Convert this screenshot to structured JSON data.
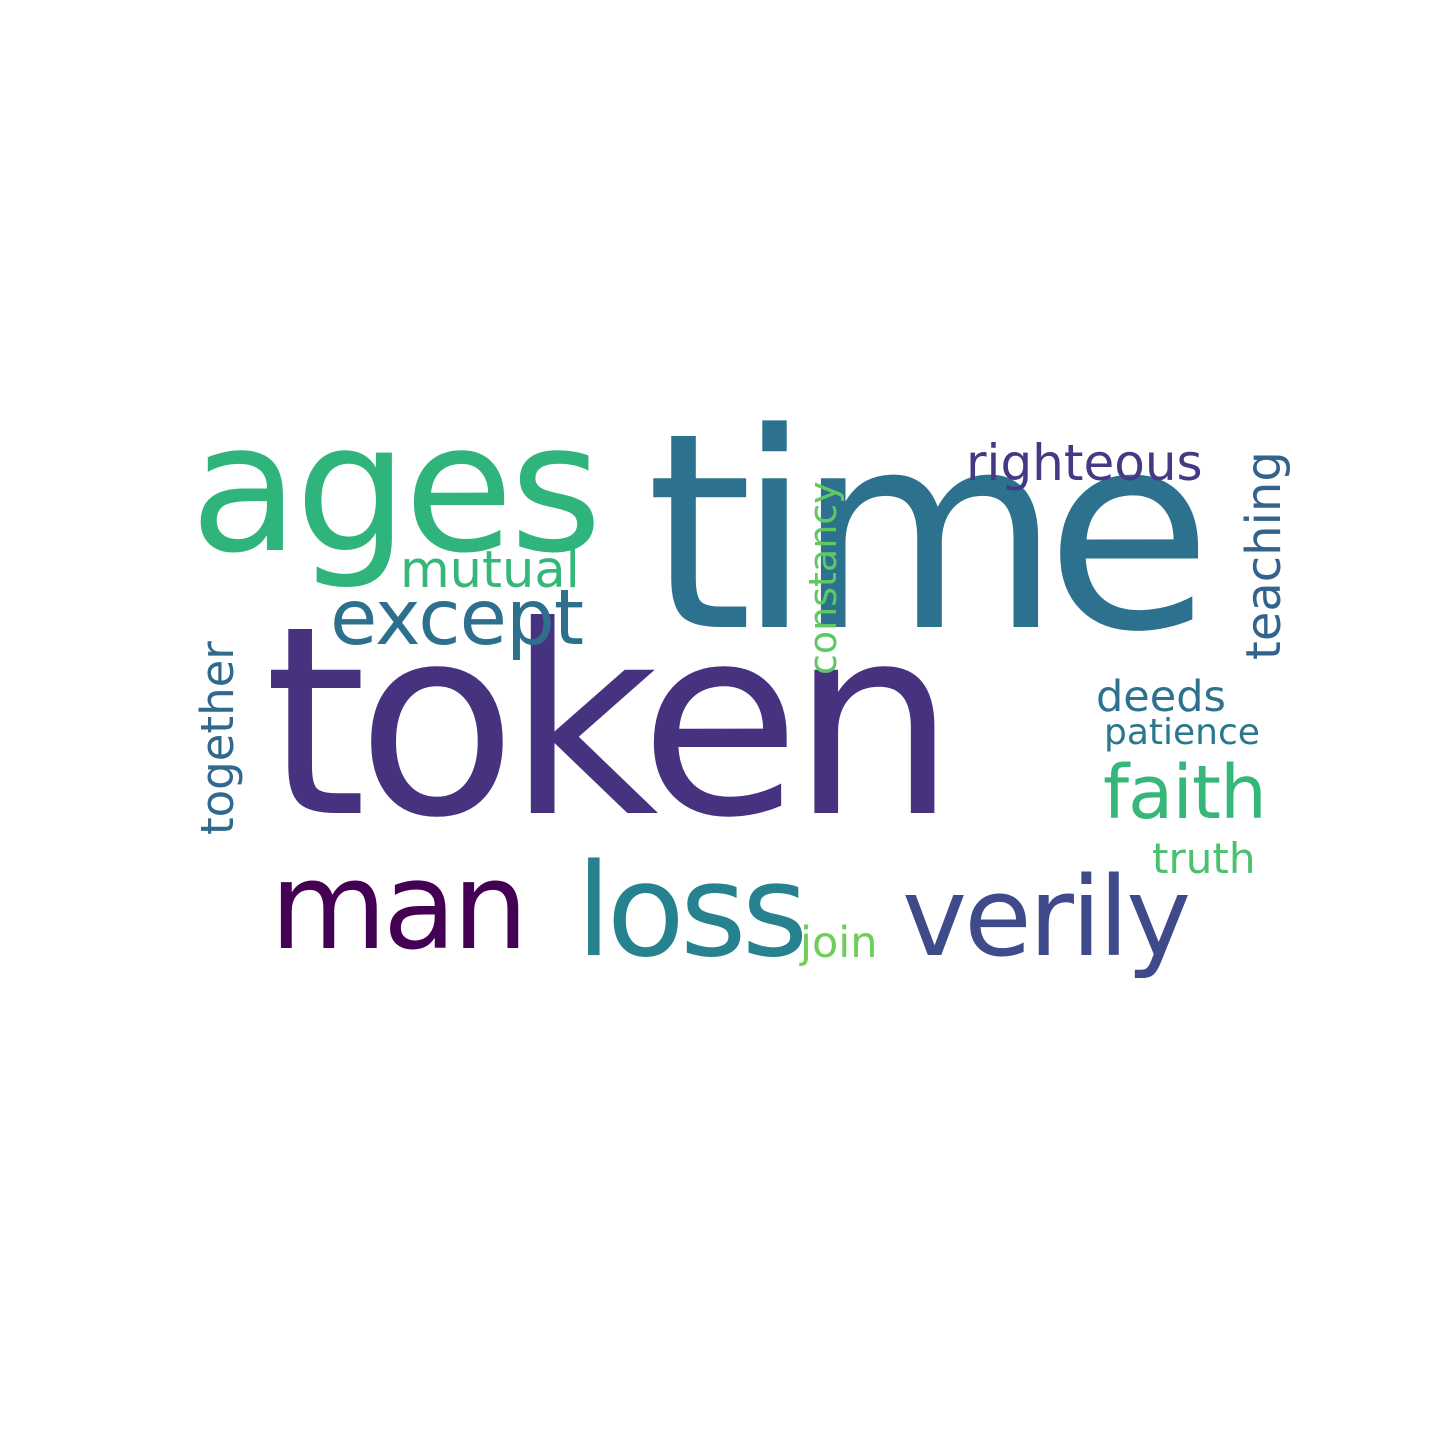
{
  "words": [
    {
      "text": "token",
      "color": "#46327e"
    },
    {
      "text": "time",
      "color": "#2c728e"
    },
    {
      "text": "ages",
      "color": "#2fb47c"
    },
    {
      "text": "except",
      "color": "#2d708e"
    },
    {
      "text": "mutual",
      "color": "#35b779"
    },
    {
      "text": "righteous",
      "color": "#443983"
    },
    {
      "text": "teaching",
      "color": "#33638d"
    },
    {
      "text": "constancy",
      "color": "#5ec962"
    },
    {
      "text": "together",
      "color": "#31688e"
    },
    {
      "text": "deeds",
      "color": "#2c728e"
    },
    {
      "text": "patience",
      "color": "#2a788e"
    },
    {
      "text": "faith",
      "color": "#35b779"
    },
    {
      "text": "truth",
      "color": "#4ac16d"
    },
    {
      "text": "man",
      "color": "#440154"
    },
    {
      "text": "loss",
      "color": "#26828e"
    },
    {
      "text": "verily",
      "color": "#3e4a89"
    },
    {
      "text": "join",
      "color": "#6ece58"
    }
  ]
}
